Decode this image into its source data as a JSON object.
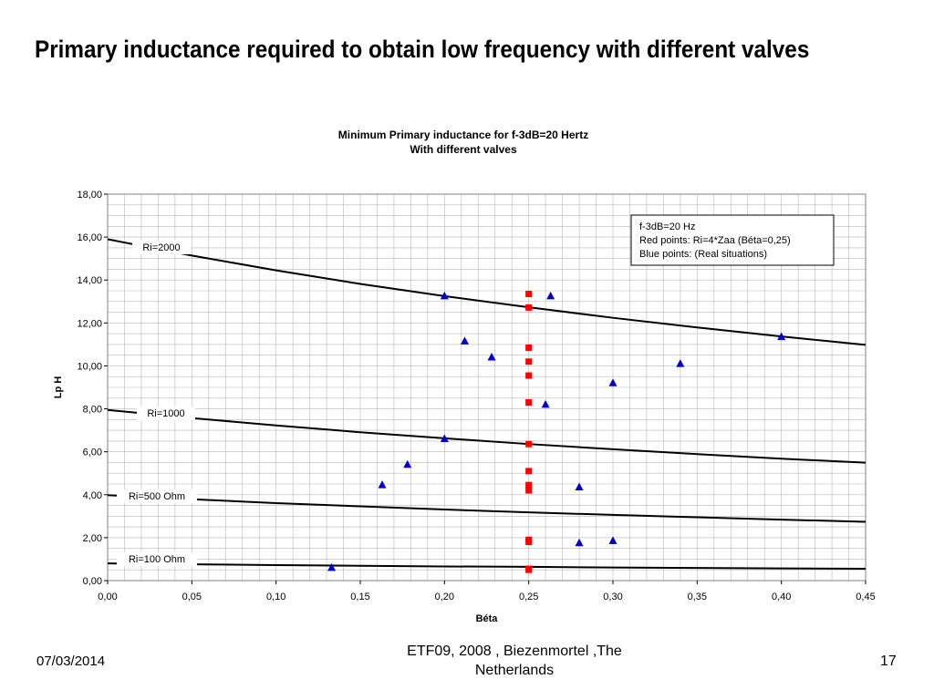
{
  "slide": {
    "title": "Primary inductance required to obtain low frequency with different valves",
    "footer_date": "07/03/2014",
    "footer_source": "ETF09, 2008 , Biezenmortel ,The Netherlands",
    "page_number": "17"
  },
  "chart_data": {
    "type": "scatter",
    "title": "Minimum Primary inductance for f-3dB=20 Hertz",
    "subtitle": "With different valves",
    "xlabel": "Béta",
    "ylabel": "Lp  H",
    "xlim": [
      0,
      0.45
    ],
    "ylim": [
      0,
      18
    ],
    "x_ticks": [
      "0,00",
      "0,05",
      "0,10",
      "0,15",
      "0,20",
      "0,25",
      "0,30",
      "0,35",
      "0,40",
      "0,45"
    ],
    "y_ticks": [
      "0,00",
      "2,00",
      "4,00",
      "6,00",
      "8,00",
      "10,00",
      "12,00",
      "14,00",
      "16,00",
      "18,00"
    ],
    "grid": true,
    "legend_box": [
      "f-3dB=20 Hz",
      "Red points: Ri=4*Zaa (Béta=0,25)",
      "Blue points: (Real situations)"
    ],
    "curves": [
      {
        "label": "Ri=2000",
        "x": [
          0,
          0.05,
          0.1,
          0.15,
          0.2,
          0.25,
          0.3,
          0.35,
          0.4,
          0.45
        ],
        "y": [
          15.9,
          15.14,
          14.45,
          13.82,
          13.25,
          12.73,
          12.24,
          11.79,
          11.37,
          10.98
        ]
      },
      {
        "label": "Ri=1000",
        "x": [
          0,
          0.05,
          0.1,
          0.15,
          0.2,
          0.25,
          0.3,
          0.35,
          0.4,
          0.45
        ],
        "y": [
          7.95,
          7.57,
          7.23,
          6.91,
          6.63,
          6.36,
          6.12,
          5.89,
          5.68,
          5.49
        ]
      },
      {
        "label": "Ri=500 Ohm",
        "x": [
          0,
          0.05,
          0.1,
          0.15,
          0.2,
          0.25,
          0.3,
          0.35,
          0.4,
          0.45
        ],
        "y": [
          3.98,
          3.79,
          3.61,
          3.46,
          3.31,
          3.18,
          3.06,
          2.95,
          2.84,
          2.74
        ]
      },
      {
        "label": "Ri=100 Ohm",
        "x": [
          0,
          0.05,
          0.1,
          0.15,
          0.2,
          0.25,
          0.3,
          0.35,
          0.4,
          0.45
        ],
        "y": [
          0.8,
          0.76,
          0.72,
          0.69,
          0.66,
          0.64,
          0.61,
          0.59,
          0.57,
          0.55
        ]
      }
    ],
    "series": [
      {
        "marker": "square",
        "color": "#ff0000",
        "x": [
          0.25,
          0.25,
          0.25,
          0.25,
          0.25,
          0.25,
          0.25,
          0.25,
          0.25,
          0.25,
          0.25,
          0.25,
          0.25,
          0.25
        ],
        "y": [
          13.35,
          12.72,
          10.85,
          10.2,
          9.55,
          8.3,
          6.36,
          5.1,
          4.45,
          4.2,
          1.9,
          1.8,
          0.55,
          0.5
        ]
      },
      {
        "marker": "triangle",
        "color": "#0000cc",
        "x": [
          0.133,
          0.163,
          0.178,
          0.2,
          0.2,
          0.212,
          0.228,
          0.26,
          0.263,
          0.28,
          0.28,
          0.3,
          0.3,
          0.34,
          0.4
        ],
        "y": [
          0.6,
          4.45,
          5.4,
          6.6,
          13.25,
          11.15,
          10.4,
          8.2,
          13.25,
          4.35,
          1.75,
          1.85,
          9.2,
          10.1,
          11.35
        ]
      }
    ],
    "colors": {
      "curve": "#000000",
      "grid": "#b8b8b8",
      "plot_bg": "#ffffff"
    }
  }
}
